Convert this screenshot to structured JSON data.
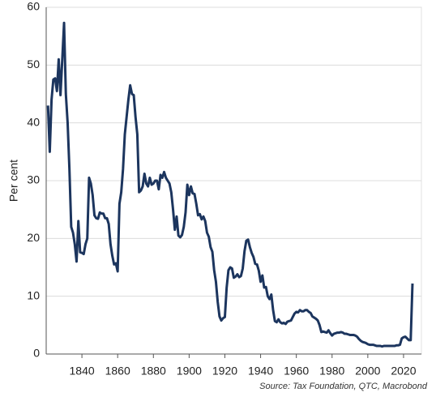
{
  "chart_data": {
    "type": "line",
    "y_label": "Per cent",
    "source": "Source: Tax Foundation, QTC, Macrobond",
    "xlim": [
      1820,
      2030
    ],
    "ylim": [
      0,
      60
    ],
    "xticks": [
      1840,
      1860,
      1880,
      1900,
      1920,
      1940,
      1960,
      1980,
      2000,
      2020
    ],
    "yticks": [
      0,
      10,
      20,
      30,
      40,
      50,
      60
    ],
    "grid": true,
    "x": [
      1821,
      1822,
      1823,
      1824,
      1825,
      1826,
      1827,
      1828,
      1829,
      1830,
      1831,
      1832,
      1833,
      1834,
      1835,
      1836,
      1837,
      1838,
      1839,
      1840,
      1841,
      1842,
      1843,
      1844,
      1845,
      1846,
      1847,
      1848,
      1849,
      1850,
      1851,
      1852,
      1853,
      1854,
      1855,
      1856,
      1857,
      1858,
      1859,
      1860,
      1861,
      1862,
      1863,
      1864,
      1865,
      1866,
      1867,
      1868,
      1869,
      1870,
      1871,
      1872,
      1873,
      1874,
      1875,
      1876,
      1877,
      1878,
      1879,
      1880,
      1881,
      1882,
      1883,
      1884,
      1885,
      1886,
      1887,
      1888,
      1889,
      1890,
      1891,
      1892,
      1893,
      1894,
      1895,
      1896,
      1897,
      1898,
      1899,
      1900,
      1901,
      1902,
      1903,
      1904,
      1905,
      1906,
      1907,
      1908,
      1909,
      1910,
      1911,
      1912,
      1913,
      1914,
      1915,
      1916,
      1917,
      1918,
      1919,
      1920,
      1921,
      1922,
      1923,
      1924,
      1925,
      1926,
      1927,
      1928,
      1929,
      1930,
      1931,
      1932,
      1933,
      1934,
      1935,
      1936,
      1937,
      1938,
      1939,
      1940,
      1941,
      1942,
      1943,
      1944,
      1945,
      1946,
      1947,
      1948,
      1949,
      1950,
      1951,
      1952,
      1953,
      1954,
      1955,
      1956,
      1957,
      1958,
      1959,
      1960,
      1961,
      1962,
      1963,
      1964,
      1965,
      1966,
      1967,
      1968,
      1969,
      1970,
      1971,
      1972,
      1973,
      1974,
      1975,
      1976,
      1977,
      1978,
      1979,
      1980,
      1981,
      1982,
      1983,
      1984,
      1985,
      1986,
      1987,
      1988,
      1989,
      1990,
      1991,
      1992,
      1993,
      1994,
      1995,
      1996,
      1997,
      1998,
      1999,
      2000,
      2001,
      2002,
      2003,
      2004,
      2005,
      2006,
      2007,
      2008,
      2009,
      2010,
      2011,
      2012,
      2013,
      2014,
      2015,
      2016,
      2017,
      2018,
      2019,
      2020,
      2021,
      2022,
      2023,
      2024,
      2025
    ],
    "series": [
      {
        "color": "#1c355e",
        "values": [
          43,
          35,
          44,
          47.5,
          47.7,
          45.5,
          51,
          44.8,
          51,
          57.3,
          45,
          40,
          32,
          22,
          21,
          19,
          16,
          23,
          17.6,
          17.5,
          17.3,
          19,
          20,
          30.5,
          29.5,
          27.5,
          24,
          23.5,
          23.4,
          24.5,
          24.3,
          24.3,
          23.5,
          23.5,
          22.5,
          19,
          17,
          15.5,
          15.7,
          14.3,
          26,
          28,
          32,
          38,
          41,
          44,
          46.5,
          45,
          44.8,
          41,
          38,
          28,
          28.3,
          29,
          31.2,
          29.5,
          29,
          30.5,
          29.3,
          29.5,
          30,
          30,
          28.5,
          31,
          30.5,
          31.5,
          30.5,
          30,
          29.5,
          28,
          25,
          21.5,
          23.8,
          20.5,
          20.2,
          20.6,
          22,
          24.5,
          29.3,
          27.5,
          29,
          27.8,
          27.7,
          26,
          24,
          24.2,
          23.3,
          23.8,
          23,
          21,
          20.3,
          18.5,
          17.7,
          14.5,
          12.5,
          9,
          6.5,
          5.8,
          6.2,
          6.4,
          11.5,
          14.5,
          15,
          14.8,
          13.2,
          13.4,
          13.8,
          13.3,
          13.5,
          14.8,
          17.8,
          19.6,
          19.8,
          18.5,
          17.5,
          16.8,
          15.6,
          15.5,
          14.4,
          12.5,
          13.6,
          11.5,
          11.6,
          10,
          9.5,
          10.3,
          7.6,
          5.7,
          5.5,
          6,
          5.5,
          5.3,
          5.4,
          5.2,
          5.6,
          5.7,
          5.8,
          6.4,
          7,
          7.3,
          7.2,
          7.6,
          7.4,
          7.4,
          7.6,
          7.6,
          7.3,
          7.1,
          6.5,
          6.3,
          6.1,
          5.8,
          5,
          3.8,
          3.9,
          3.8,
          3.7,
          4.1,
          3.6,
          3.2,
          3.5,
          3.6,
          3.7,
          3.7,
          3.8,
          3.7,
          3.5,
          3.5,
          3.4,
          3.3,
          3.3,
          3.3,
          3.2,
          3,
          2.6,
          2.3,
          2.1,
          2,
          1.9,
          1.7,
          1.6,
          1.6,
          1.6,
          1.5,
          1.4,
          1.4,
          1.4,
          1.3,
          1.4,
          1.4,
          1.4,
          1.4,
          1.4,
          1.4,
          1.4,
          1.5,
          1.5,
          1.6,
          2.7,
          2.9,
          3,
          2.7,
          2.4,
          2.4,
          12.2
        ]
      }
    ]
  }
}
